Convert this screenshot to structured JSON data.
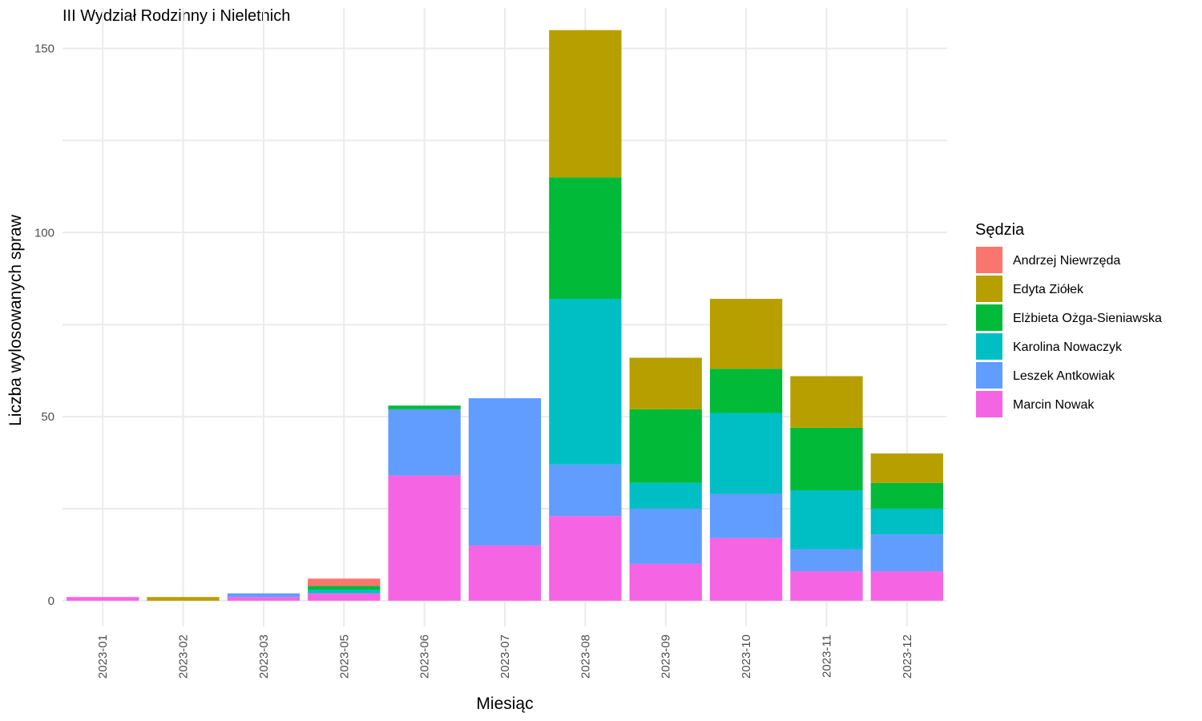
{
  "chart_data": {
    "type": "bar",
    "stacked": true,
    "title": "III Wydział Rodzinny i Nieletnich",
    "xlabel": "Miesiąc",
    "ylabel": "Liczba wylosowanych spraw",
    "ylim": [
      -7,
      161
    ],
    "yticks": [
      0,
      50,
      100,
      150
    ],
    "grid": true,
    "legend": {
      "title": "Sędzia",
      "position": "right"
    },
    "categories": [
      "2023-01",
      "2023-02",
      "2023-03",
      "2023-05",
      "2023-06",
      "2023-07",
      "2023-08",
      "2023-09",
      "2023-10",
      "2023-11",
      "2023-12"
    ],
    "series": [
      {
        "name": "Andrzej Niewrzęda",
        "color": "#F8766D",
        "values": [
          0,
          0,
          0,
          2,
          0,
          0,
          0,
          0,
          0,
          0,
          0
        ]
      },
      {
        "name": "Edyta Ziółek",
        "color": "#B79F00",
        "values": [
          0,
          1,
          0,
          0,
          0,
          0,
          40,
          14,
          19,
          14,
          8
        ]
      },
      {
        "name": "Elżbieta Ożga-Sieniawska",
        "color": "#00BA38",
        "values": [
          0,
          0,
          0,
          1,
          1,
          0,
          33,
          20,
          12,
          17,
          7
        ]
      },
      {
        "name": "Karolina Nowaczyk",
        "color": "#00BFC4",
        "values": [
          0,
          0,
          0,
          1,
          0,
          0,
          45,
          7,
          22,
          16,
          7
        ]
      },
      {
        "name": "Leszek Antkowiak",
        "color": "#619CFF",
        "values": [
          0,
          0,
          1,
          0,
          18,
          40,
          14,
          15,
          12,
          6,
          10
        ]
      },
      {
        "name": "Marcin Nowak",
        "color": "#F564E3",
        "values": [
          1,
          0,
          1,
          2,
          34,
          15,
          23,
          10,
          17,
          8,
          8
        ]
      }
    ]
  }
}
